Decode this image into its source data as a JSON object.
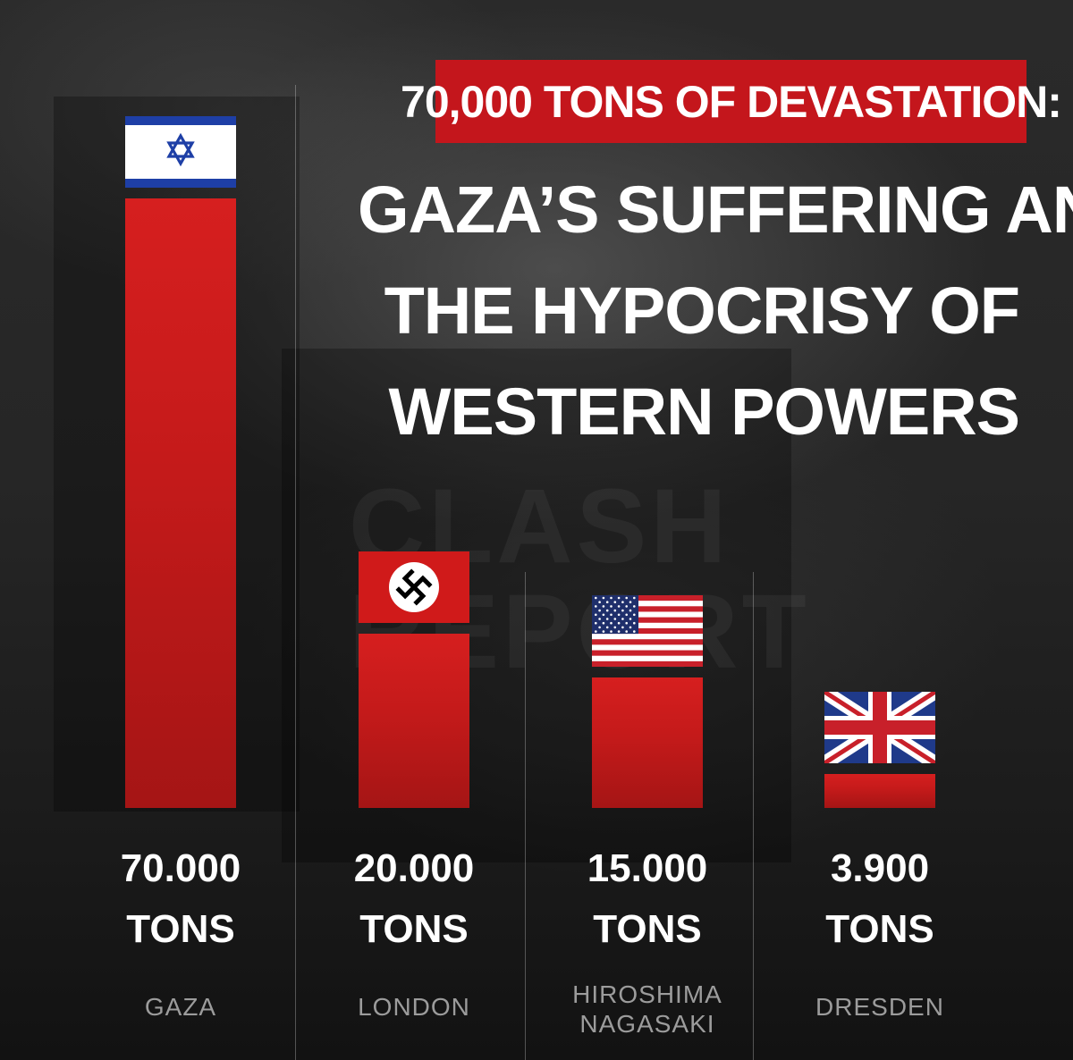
{
  "title": "70,000 TONS OF DEVASTATION:",
  "subtitle_lines": [
    "GAZA’S SUFFERING AND",
    "THE HYPOCRISY OF",
    "WESTERN POWERS"
  ],
  "watermark": "CLASH REPORT",
  "colors": {
    "bar_red": "#c41a1a",
    "headline_red": "#c4161c",
    "text_white": "#ffffff",
    "label_grey": "#9c9c9c",
    "background": "#1a1a1a"
  },
  "chart_data": {
    "type": "bar",
    "categories": [
      "GAZA",
      "LONDON",
      "HIROSHIMA\nNAGASAKI",
      "DRESDEN"
    ],
    "values": [
      70000,
      20000,
      15000,
      3900
    ],
    "value_labels": [
      "70.000",
      "20.000",
      "15.000",
      "3.900"
    ],
    "unit_label": "TONS",
    "flags": [
      "israel-flag",
      "nazi-germany-flag",
      "us-flag",
      "uk-flag"
    ],
    "title": "70,000 TONS OF DEVASTATION:",
    "xlabel": "",
    "ylabel": "",
    "grid": false,
    "legend": "none"
  }
}
